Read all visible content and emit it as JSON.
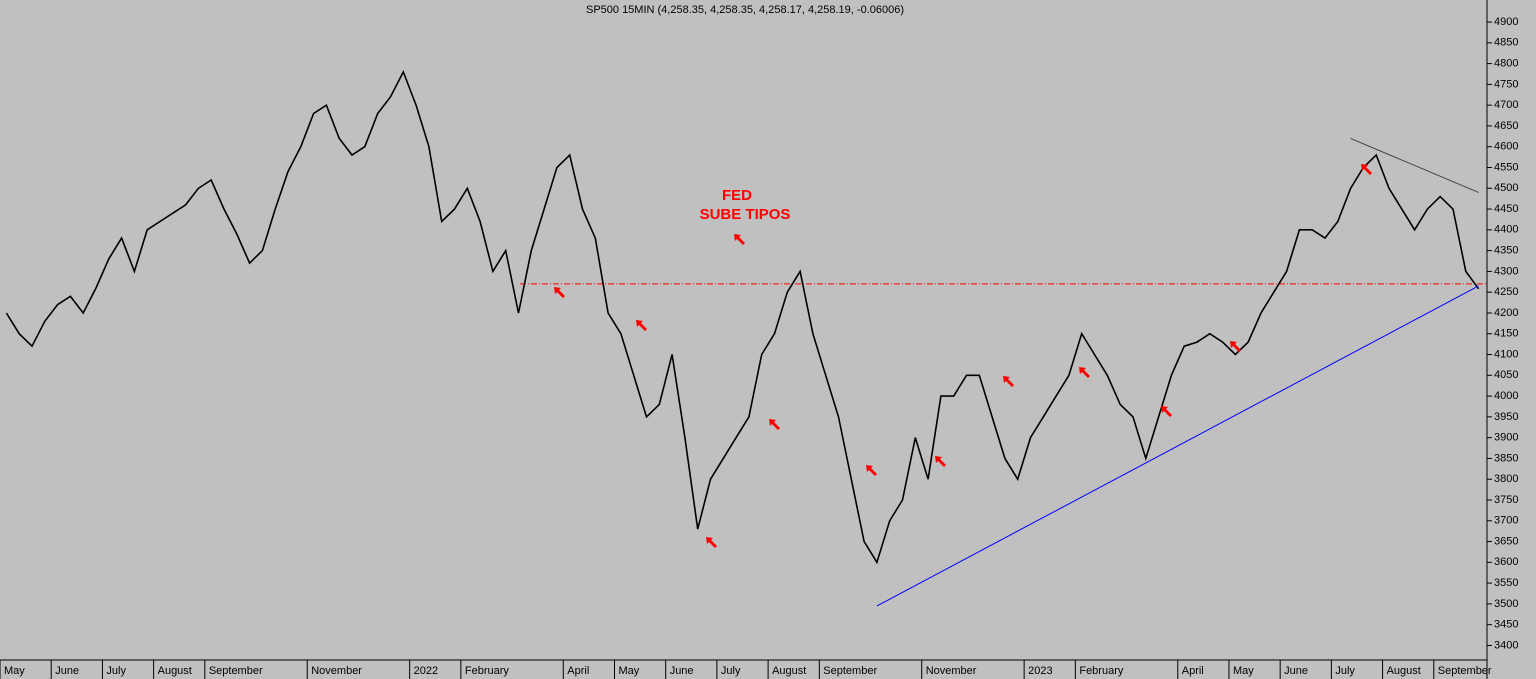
{
  "chart_data": {
    "type": "line",
    "title": "SP500 15MIN (4,258.35, 4,258.35, 4,258.17, 4,258.19, -0.06006)",
    "annotations": [
      "FED",
      "SUBE TIPOS"
    ],
    "categories": [
      "May",
      null,
      null,
      null,
      "June",
      null,
      null,
      null,
      "July",
      null,
      null,
      null,
      "August",
      null,
      null,
      null,
      "September",
      null,
      null,
      null,
      null,
      null,
      null,
      null,
      "November",
      null,
      null,
      null,
      null,
      null,
      null,
      null,
      "2022",
      null,
      null,
      null,
      "February",
      null,
      null,
      null,
      null,
      null,
      null,
      null,
      "April",
      null,
      null,
      null,
      "May",
      null,
      null,
      null,
      "June",
      null,
      null,
      null,
      "July",
      null,
      null,
      null,
      "August",
      null,
      null,
      null,
      "September",
      null,
      null,
      null,
      null,
      null,
      null,
      null,
      "November",
      null,
      null,
      null,
      null,
      null,
      null,
      null,
      "2023",
      null,
      null,
      null,
      "February",
      null,
      null,
      null,
      null,
      null,
      null,
      null,
      "April",
      null,
      null,
      null,
      "May",
      null,
      null,
      null,
      "June",
      null,
      null,
      null,
      "July",
      null,
      null,
      null,
      "August",
      null,
      null,
      null,
      "September",
      null,
      null,
      null
    ],
    "series": [
      {
        "color": "#000000",
        "values": [
          4200,
          4150,
          4120,
          4180,
          4220,
          4240,
          4200,
          4260,
          4330,
          4380,
          4300,
          4400,
          4420,
          4440,
          4460,
          4500,
          4520,
          4450,
          4390,
          4320,
          4350,
          4450,
          4540,
          4600,
          4680,
          4700,
          4620,
          4580,
          4600,
          4680,
          4720,
          4780,
          4700,
          4600,
          4420,
          4450,
          4500,
          4420,
          4300,
          4350,
          4200,
          4350,
          4450,
          4550,
          4580,
          4450,
          4380,
          4200,
          4150,
          4050,
          3950,
          3980,
          4100,
          3900,
          3680,
          3800,
          3850,
          3900,
          3950,
          4100,
          4150,
          4250,
          4300,
          4150,
          4050,
          3950,
          3800,
          3650,
          3600,
          3700,
          3750,
          3900,
          3800,
          4000,
          4000,
          4050,
          4050,
          3950,
          3850,
          3800,
          3900,
          3950,
          4000,
          4050,
          4150,
          4100,
          4050,
          3980,
          3950,
          3850,
          3950,
          4050,
          4120,
          4130,
          4150,
          4130,
          4100,
          4130,
          4200,
          4250,
          4300,
          4400,
          4400,
          4380,
          4420,
          4500,
          4550,
          4580,
          4500,
          4450,
          4400,
          4450,
          4480,
          4450,
          4300,
          4258.19
        ]
      }
    ],
    "reference_lines": [
      {
        "value": 4270,
        "color": "#ff0000"
      }
    ],
    "trendlines": [
      {
        "color": "#0000ff",
        "start": [
          68,
          3495
        ],
        "end": [
          115,
          4265
        ]
      },
      {
        "color": "#404040",
        "start": [
          105,
          4620
        ],
        "end": [
          115,
          4490
        ]
      }
    ],
    "ylim": [
      3365,
      4953
    ],
    "yticks": [
      3400,
      3450,
      3500,
      3550,
      3600,
      3650,
      3700,
      3750,
      3800,
      3850,
      3900,
      3950,
      4000,
      4050,
      4100,
      4150,
      4200,
      4250,
      4300,
      4350,
      4400,
      4450,
      4500,
      4550,
      4600,
      4650,
      4700,
      4750,
      4800,
      4850,
      4900
    ]
  }
}
